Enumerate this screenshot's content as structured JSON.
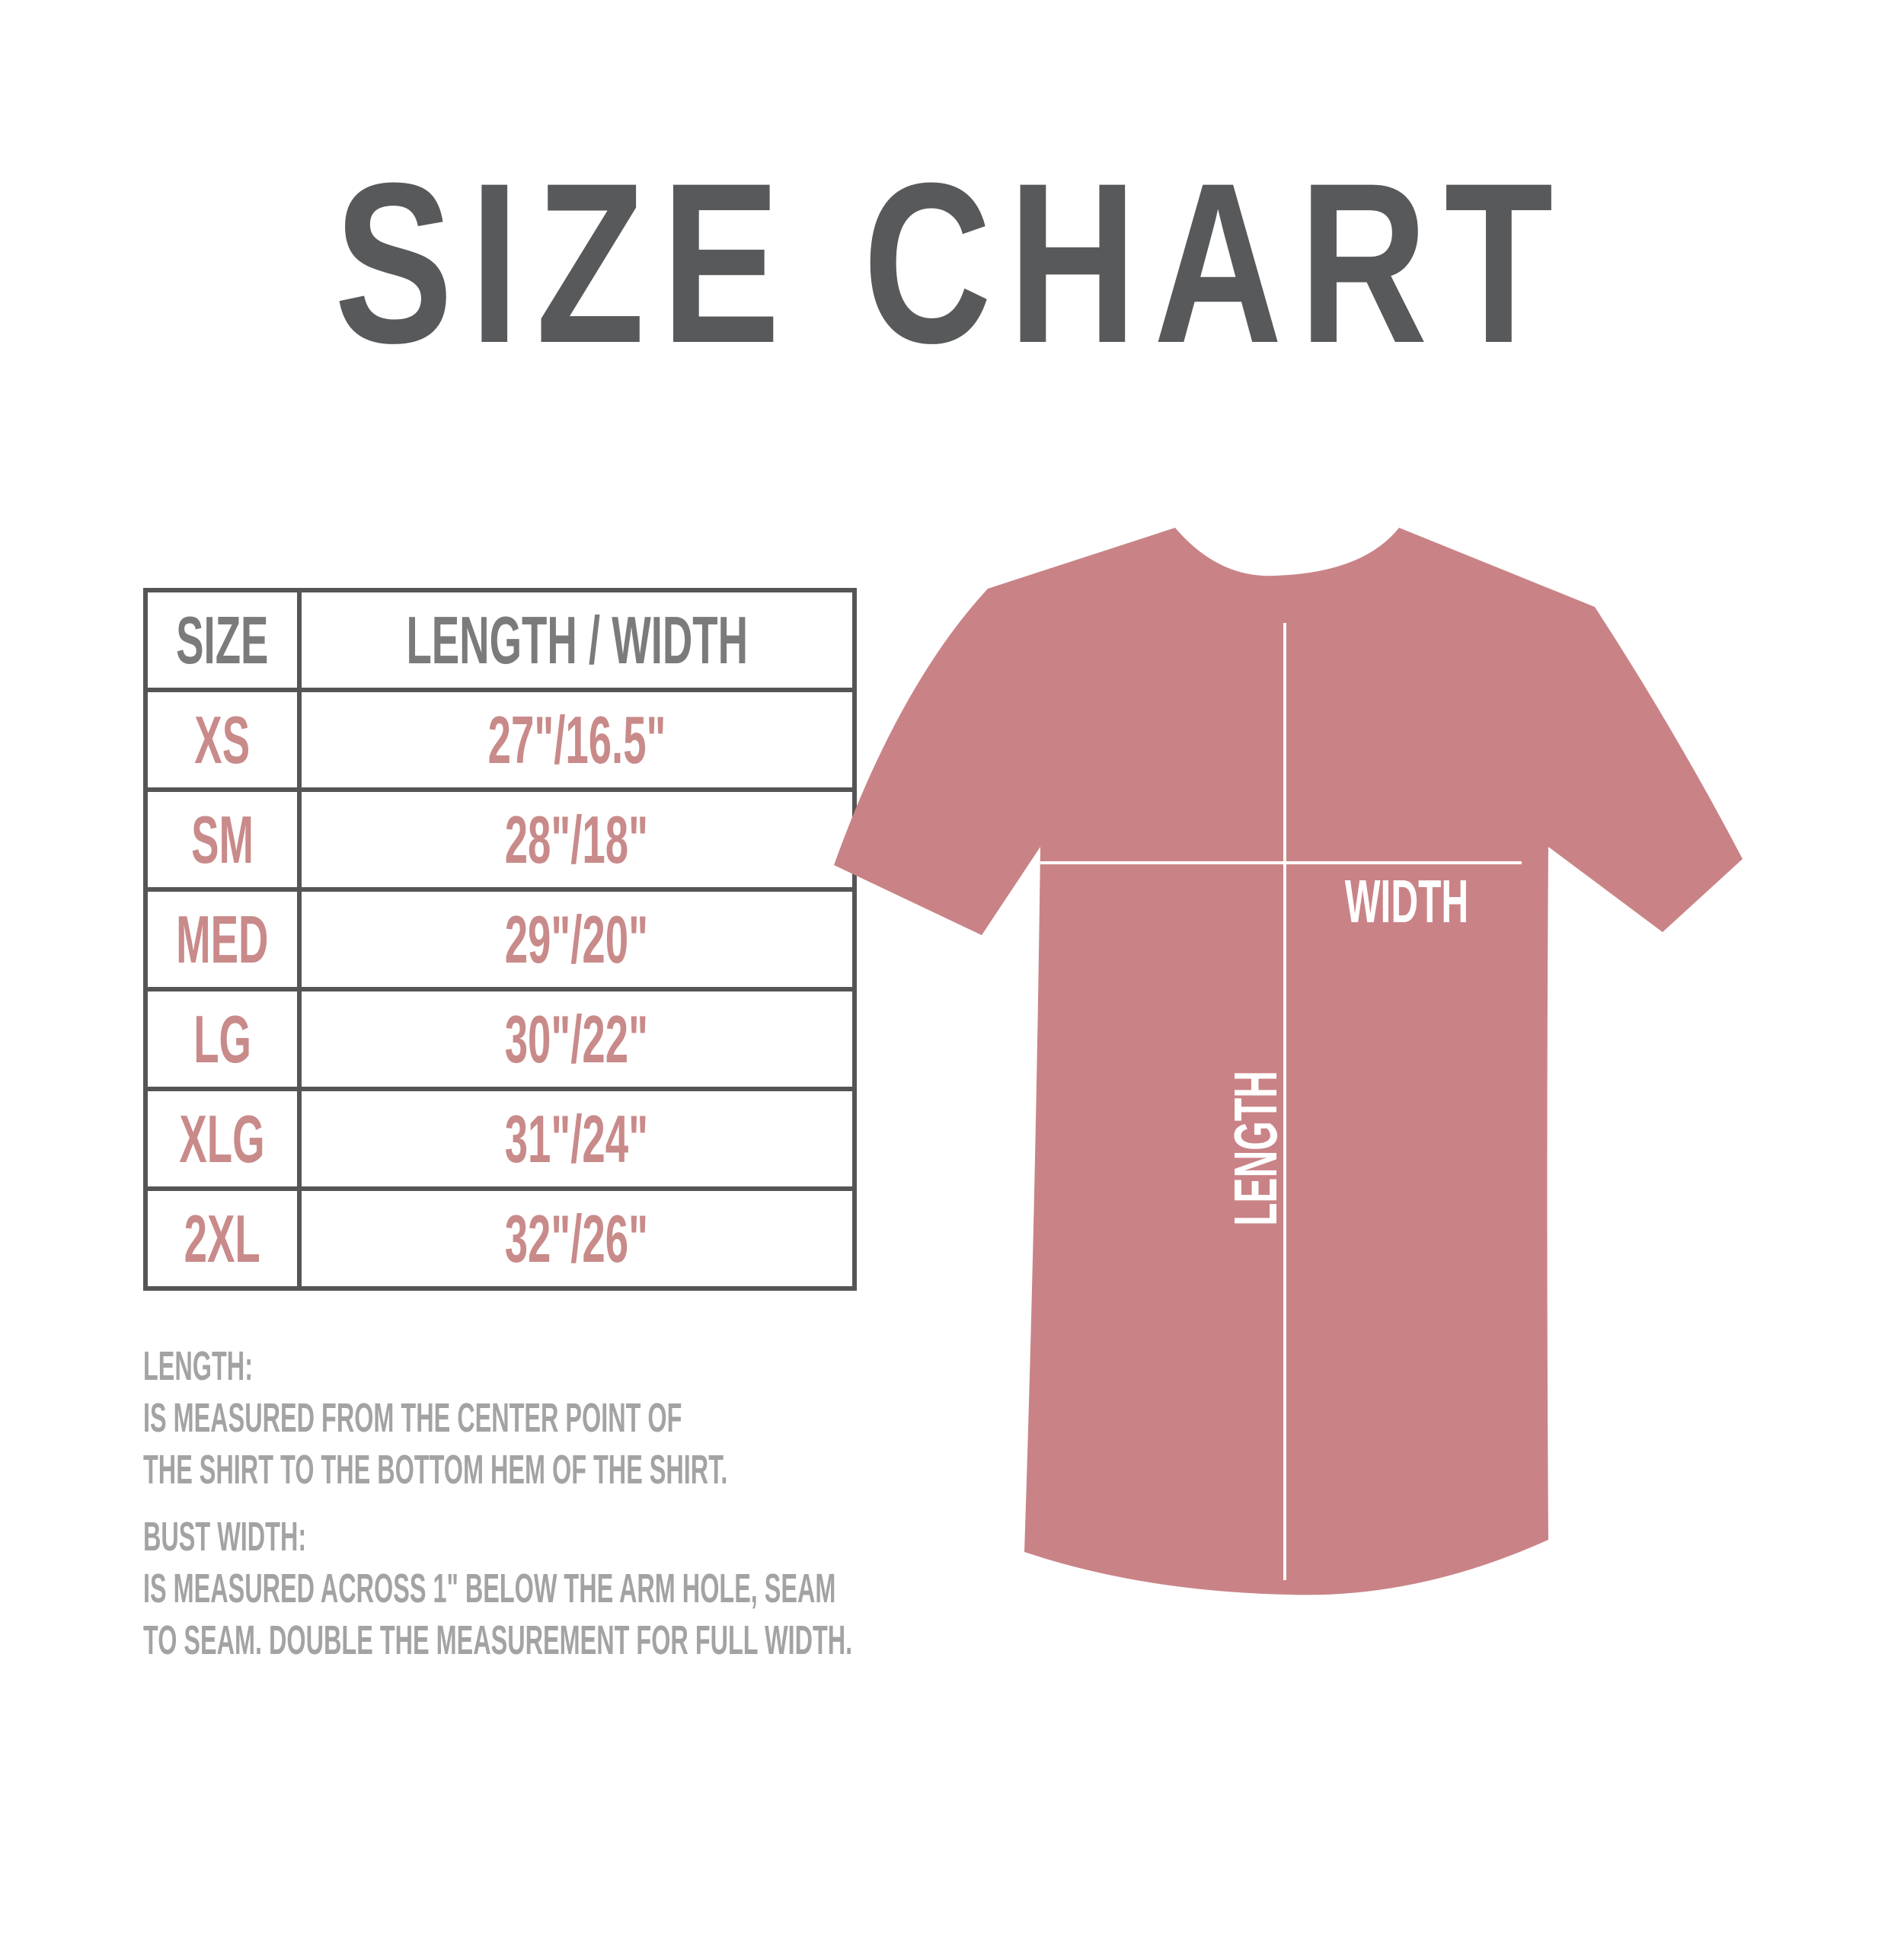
{
  "title": "SIZE CHART",
  "table": {
    "headers": [
      "SIZE",
      "LENGTH / WIDTH"
    ],
    "rows": [
      {
        "size": "XS",
        "value": "27\"/16.5\""
      },
      {
        "size": "SM",
        "value": "28\"/18\""
      },
      {
        "size": "MED",
        "value": "29\"/20\""
      },
      {
        "size": "LG",
        "value": "30\"/22\""
      },
      {
        "size": "XLG",
        "value": "31\"/24\""
      },
      {
        "size": "2XL",
        "value": "32\"/26\""
      }
    ]
  },
  "notes": {
    "length_heading": "LENGTH:",
    "length_lines": [
      "IS MEASURED FROM THE CENTER POINT OF",
      "THE SHIRT TO THE BOTTOM HEM OF THE SHIRT."
    ],
    "width_heading": "BUST WIDTH:",
    "width_lines": [
      "IS MEASURED ACROSS  1\" BELOW THE ARM HOLE, SEAM",
      "TO SEAM. DOUBLE THE MEASUREMENT FOR FULL WIDTH."
    ]
  },
  "diagram": {
    "width_label": "WIDTH",
    "length_label": "LENGTH",
    "shirt_color": "#c98386",
    "title_color": "#58595b",
    "value_color": "#c98a8a"
  }
}
